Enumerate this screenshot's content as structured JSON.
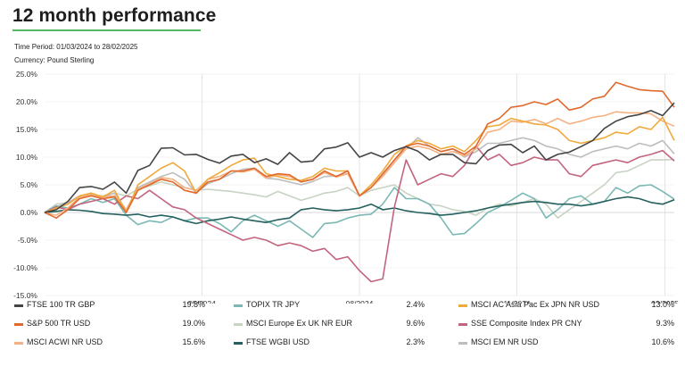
{
  "title": "12 month performance",
  "time_period": "Time Period: 01/03/2024 to 28/02/2025",
  "currency": "Currency: Pound Sterling",
  "chart_data": {
    "type": "line",
    "y_ticks": [
      "25.0%",
      "20.0%",
      "15.0%",
      "10.0%",
      "5.0%",
      "0.0%",
      "-5.0%",
      "-10.0%",
      "-15.0%"
    ],
    "ylim": [
      -15,
      25
    ],
    "x_ticks": [
      "05/2024",
      "08/2024",
      "11/2024",
      "02/2025"
    ],
    "grid": "vertical-at-x-ticks",
    "series": [
      {
        "name": "FTSE 100 TR GBP",
        "value": "19.8%",
        "color": "#454545",
        "values": [
          0,
          0.5,
          2,
          4.5,
          4.7,
          4.2,
          5.5,
          3.5,
          7.6,
          8.5,
          11.6,
          11.7,
          10.4,
          10.5,
          9.6,
          8.9,
          10.2,
          10.5,
          9,
          9.7,
          8.7,
          10.8,
          9.1,
          9.3,
          11.5,
          11.8,
          12.6,
          10,
          10.8,
          10,
          11.2,
          11.9,
          11.1,
          9.5,
          10.5,
          10.5,
          9,
          8.8,
          11.2,
          12.2,
          12.3,
          10.8,
          12,
          9.5,
          10.5,
          10.9,
          11.9,
          13,
          15.2,
          16.5,
          17.3,
          17.7,
          18.4,
          17.5,
          19.8
        ]
      },
      {
        "name": "S&P 500 TR USD",
        "value": "19.0%",
        "color": "#e06a2e",
        "values": [
          0,
          -1,
          0.5,
          2.5,
          3,
          2.5,
          2.8,
          0,
          4,
          5,
          6,
          5.5,
          4,
          3.5,
          5.5,
          6,
          7.5,
          7.5,
          8,
          6.5,
          7,
          6.8,
          5.5,
          6,
          7.5,
          6.5,
          7.5,
          3,
          4.5,
          7,
          9.5,
          12,
          12.5,
          12,
          11,
          11.5,
          10.5,
          12,
          16,
          17,
          19,
          19.3,
          20,
          19.5,
          20.5,
          18.5,
          19,
          20.5,
          21,
          23.5,
          22.8,
          22.2,
          22,
          21.9,
          19
        ]
      },
      {
        "name": "MSCI ACWI NR USD",
        "value": "15.6%",
        "color": "#f4b183",
        "values": [
          0,
          -0.5,
          0.8,
          2.8,
          3.2,
          2.8,
          3,
          0.5,
          4.2,
          5.2,
          6.3,
          6,
          4.5,
          4,
          6,
          6.5,
          7.5,
          7.3,
          7.8,
          6.2,
          6.8,
          6.5,
          5.6,
          6,
          7.2,
          6.4,
          7,
          3,
          4.5,
          6.5,
          9,
          11.5,
          12,
          11.5,
          10.5,
          11,
          10.2,
          11.5,
          14.5,
          15,
          16.5,
          16.3,
          16.8,
          16,
          17,
          16,
          16.5,
          17.2,
          17.5,
          18.2,
          18,
          18,
          17.8,
          16.5,
          15.6
        ]
      },
      {
        "name": "TOPIX TR JPY",
        "value": "2.4%",
        "color": "#7ab8b4",
        "values": [
          0,
          1.2,
          0.8,
          1.5,
          2.5,
          1.8,
          2.5,
          -0.5,
          -2.2,
          -1.5,
          -1.8,
          -0.8,
          -1.5,
          -1,
          -1,
          -2,
          -3.5,
          -1.5,
          -0.5,
          -1.5,
          -2.5,
          -1.5,
          -3,
          -4.5,
          -2,
          -1.8,
          -1,
          -0.5,
          -0.3,
          1.5,
          4.5,
          2.5,
          2.5,
          1.5,
          -1,
          -4,
          -3.8,
          -2,
          0,
          1,
          2.2,
          3.5,
          2.5,
          -1,
          0.5,
          2.5,
          3,
          1.5,
          2,
          4.5,
          3.5,
          4.8,
          5,
          3.8,
          2.4
        ]
      },
      {
        "name": "MSCI Europe Ex UK NR EUR",
        "value": "9.6%",
        "color": "#c8d3c2",
        "values": [
          0,
          1.5,
          1.8,
          2.8,
          3.2,
          3,
          3.5,
          3,
          4.2,
          4.8,
          5.5,
          5,
          4.5,
          4,
          4.2,
          4,
          3.8,
          3.5,
          3.2,
          2.8,
          3.8,
          3,
          2.2,
          2.8,
          3.5,
          3.8,
          4.5,
          3,
          4,
          4.5,
          5,
          3.5,
          2.5,
          1.5,
          1.2,
          0.5,
          0.2,
          -0.5,
          0.8,
          1.5,
          1.2,
          1.8,
          2.5,
          1.5,
          -1,
          0.5,
          2,
          3.5,
          5,
          7.2,
          7.5,
          8.5,
          9.5,
          9.5,
          9.6
        ]
      },
      {
        "name": "FTSE WGBI USD",
        "value": "2.3%",
        "color": "#24605e",
        "values": [
          0,
          0.2,
          0.5,
          0.4,
          0.2,
          -0.2,
          -0.3,
          -0.5,
          -0.3,
          -0.8,
          -0.5,
          -0.8,
          -1.5,
          -2,
          -1.5,
          -1.2,
          -0.8,
          -1.2,
          -1.5,
          -1.8,
          -1.3,
          -1,
          0.5,
          0.8,
          0.5,
          0.3,
          0.5,
          0.8,
          1.5,
          0.5,
          0.8,
          0.3,
          0,
          -0.2,
          -0.5,
          -0.3,
          0,
          0.3,
          0.8,
          1.2,
          1.5,
          1.8,
          2,
          1.8,
          1.5,
          1.5,
          1.2,
          1.5,
          2,
          2.5,
          2.8,
          2.5,
          1.8,
          1.5,
          2.3
        ]
      },
      {
        "name": "MSCI AC Asia Pac Ex JPN NR USD",
        "value": "13.0%",
        "color": "#f0a93b",
        "values": [
          0,
          0.8,
          1.5,
          3,
          3.5,
          2.8,
          4,
          0,
          5,
          6.5,
          8,
          9,
          7.5,
          3.5,
          6,
          7.2,
          8.5,
          9.5,
          9.8,
          7,
          6.5,
          6,
          5.8,
          6.5,
          8,
          7.5,
          7.5,
          3,
          5,
          7.5,
          10.5,
          12,
          13,
          12.5,
          11.5,
          12,
          11,
          13,
          15.5,
          15.8,
          17,
          16.5,
          16,
          15.8,
          15,
          13,
          12.5,
          13,
          13.5,
          14.5,
          14.2,
          15.5,
          15,
          17.2,
          13
        ]
      },
      {
        "name": "SSE Composite Index PR CNY",
        "value": "9.3%",
        "color": "#c3647e",
        "values": [
          0,
          1,
          0.5,
          1.5,
          2,
          2.5,
          1.5,
          3,
          2.5,
          4,
          2.5,
          1,
          0.5,
          -1,
          -2,
          -3,
          -4,
          -5,
          -4.5,
          -5,
          -6,
          -5.5,
          -6,
          -7,
          -6.5,
          -8.5,
          -8,
          -10.5,
          -12.5,
          -12,
          1,
          9.5,
          5,
          6,
          7,
          6.5,
          8.5,
          12,
          9.5,
          10.5,
          8.5,
          9,
          10,
          9.5,
          9.5,
          7,
          6.5,
          8.5,
          9,
          9.5,
          9,
          10,
          10.5,
          11.2,
          9.3
        ]
      },
      {
        "name": "MSCI EM NR USD",
        "value": "10.6%",
        "color": "#bdbdbd",
        "values": [
          0,
          1,
          1.8,
          3,
          3.4,
          2.8,
          3.5,
          0.5,
          4.5,
          5.5,
          6.5,
          7.2,
          6,
          3.5,
          5.2,
          6,
          7,
          7.8,
          8,
          6.2,
          6,
          5.5,
          5,
          5.6,
          6.5,
          6.6,
          7,
          3,
          4.5,
          6.8,
          9.5,
          11.5,
          13.5,
          12,
          11,
          11.5,
          10,
          11,
          12.5,
          12.5,
          13,
          13.5,
          13,
          12,
          11.5,
          10.5,
          10,
          11,
          11.5,
          12,
          11.5,
          12.5,
          12,
          13,
          10.6
        ]
      }
    ]
  }
}
